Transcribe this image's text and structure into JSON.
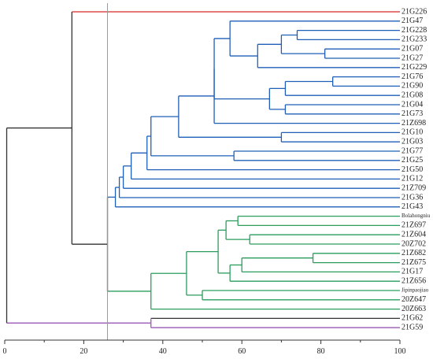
{
  "chart_data": {
    "type": "dendrogram",
    "orientation": "horizontal",
    "xlim": [
      0,
      100
    ],
    "xticks": [
      0,
      20,
      40,
      60,
      80,
      100
    ],
    "cut_line": 26,
    "leaves": [
      "21G226",
      "21G47",
      "21G228",
      "21G233",
      "21G07",
      "21G27",
      "21G229",
      "21G76",
      "21G90",
      "21G08",
      "21G04",
      "21G73",
      "21Z698",
      "21G10",
      "21G03",
      "21G77",
      "21G25",
      "21G50",
      "21G12",
      "21Z709",
      "21G36",
      "21G43",
      "Bolahongniu",
      "21Z697",
      "21Z604",
      "20Z702",
      "21Z682",
      "21Z675",
      "21G17",
      "21Z656",
      "Jipinpaojiao",
      "20Z647",
      "20Z663",
      "21G62",
      "21G59"
    ],
    "small_leaves": [
      "Bolahongniu",
      "Jipinpaojiao"
    ],
    "merges": [
      {
        "a": "L:21G07",
        "b": "L:21G27",
        "h": 81,
        "c": "blue"
      },
      {
        "a": "L:21G228",
        "b": "L:21G233",
        "h": 74,
        "c": "blue"
      },
      {
        "a": "M1",
        "b": "M0",
        "h": 70,
        "c": "blue"
      },
      {
        "a": "M2",
        "b": "L:21G229",
        "h": 64,
        "c": "blue"
      },
      {
        "a": "L:21G47",
        "b": "M3",
        "h": 57,
        "c": "blue"
      },
      {
        "a": "L:21G76",
        "b": "L:21G90",
        "h": 83,
        "c": "blue"
      },
      {
        "a": "M5",
        "b": "L:21G08",
        "h": 71,
        "c": "blue"
      },
      {
        "a": "L:21G04",
        "b": "L:21G73",
        "h": 71,
        "c": "blue"
      },
      {
        "a": "M6",
        "b": "M7",
        "h": 67,
        "c": "blue"
      },
      {
        "a": "M4",
        "b": "M8",
        "h": 53,
        "c": "blue"
      },
      {
        "a": "M9",
        "b": "L:21Z698",
        "h": 53,
        "c": "blue"
      },
      {
        "a": "L:21G10",
        "b": "L:21G03",
        "h": 70,
        "c": "blue"
      },
      {
        "a": "M10",
        "b": "M11",
        "h": 44,
        "c": "blue"
      },
      {
        "a": "L:21G77",
        "b": "L:21G25",
        "h": 58,
        "c": "blue"
      },
      {
        "a": "M12",
        "b": "M13",
        "h": 37,
        "c": "blue"
      },
      {
        "a": "M14",
        "b": "L:21G50",
        "h": 36,
        "c": "blue"
      },
      {
        "a": "M15",
        "b": "L:21G12",
        "h": 32,
        "c": "blue"
      },
      {
        "a": "M16",
        "b": "L:21Z709",
        "h": 30,
        "c": "blue"
      },
      {
        "a": "M17",
        "b": "L:21G36",
        "h": 29,
        "c": "blue"
      },
      {
        "a": "M18",
        "b": "L:21G43",
        "h": 28,
        "c": "blue"
      },
      {
        "a": "L:Bolahongniu",
        "b": "L:21Z697",
        "h": 59,
        "c": "green"
      },
      {
        "a": "L:21Z604",
        "b": "L:20Z702",
        "h": 62,
        "c": "green"
      },
      {
        "a": "M20",
        "b": "M21",
        "h": 56,
        "c": "green"
      },
      {
        "a": "L:21Z682",
        "b": "L:21Z675",
        "h": 78,
        "c": "green"
      },
      {
        "a": "M23",
        "b": "L:21G17",
        "h": 60,
        "c": "green"
      },
      {
        "a": "M24",
        "b": "L:21Z656",
        "h": 57,
        "c": "green"
      },
      {
        "a": "M22",
        "b": "M25",
        "h": 54,
        "c": "green"
      },
      {
        "a": "L:Jipinpaojiao",
        "b": "L:20Z647",
        "h": 50,
        "c": "green"
      },
      {
        "a": "M26",
        "b": "M27",
        "h": 46,
        "c": "green"
      },
      {
        "a": "M28",
        "b": "L:20Z663",
        "h": 37,
        "c": "green"
      },
      {
        "a": "M19",
        "b": "M29",
        "h": 26,
        "c": "black"
      },
      {
        "a": "L:21G226",
        "b": "M30",
        "h": 17,
        "c": "black"
      },
      {
        "a": "L:21G62",
        "b": "L:21G59",
        "h": 37,
        "c": "purple"
      },
      {
        "a": "M31",
        "b": "M32",
        "h": 0.5,
        "c": "black"
      }
    ],
    "leaf_colors": {
      "21G226": "red",
      "21G62": "black",
      "21G59": "purple"
    },
    "default_leaf_color": "auto",
    "colors": {
      "red": "#d62728",
      "blue": "#1f5fb8",
      "green": "#2a9d5c",
      "purple": "#9b59b6",
      "black": "#333333",
      "cut_line": "#999999",
      "axis": "#333333"
    }
  }
}
